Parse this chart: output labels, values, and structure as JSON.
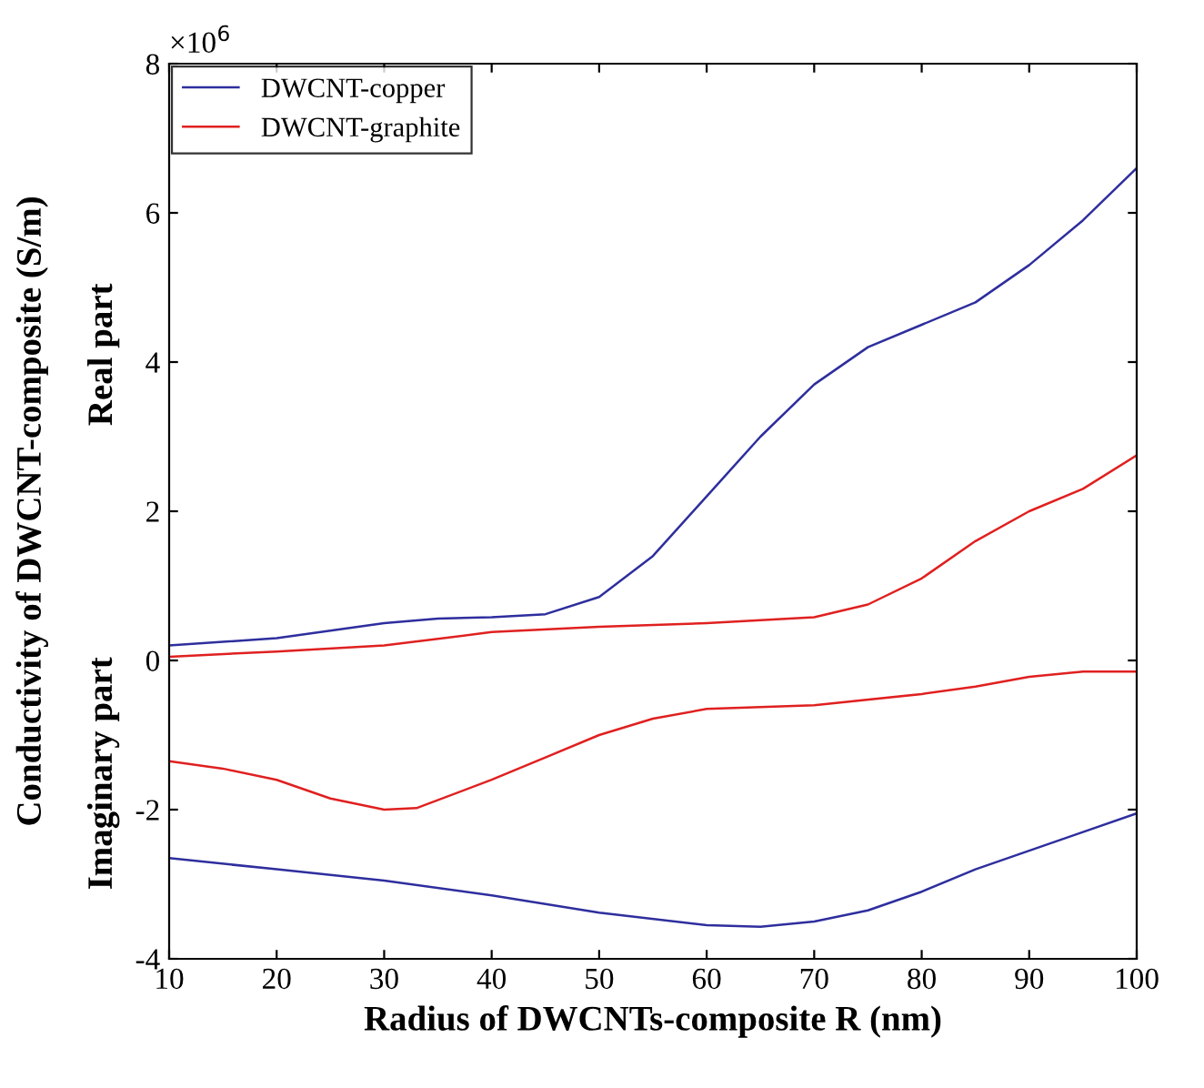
{
  "chart_data": {
    "type": "line",
    "xlabel": "Radius of DWCNTs-composite R (nm)",
    "ylabel": "Conductivity of DWCNT-composite (S/m)",
    "annotations": [
      "×10$^{6}$",
      "Real part",
      "Imaginary part"
    ],
    "series": [
      {
        "name": "DWCNT-copper",
        "color": "#2e2e9e",
        "x": [
          10,
          20,
          30,
          35,
          40,
          45,
          50,
          55,
          60,
          65,
          70,
          75,
          80,
          85,
          90,
          95,
          100
        ],
        "values": [
          0.2,
          0.3,
          0.5,
          0.56,
          0.58,
          0.62,
          0.85,
          1.4,
          2.2,
          3.0,
          3.7,
          4.2,
          4.5,
          4.8,
          5.3,
          5.9,
          6.6
        ]
      },
      {
        "name": "DWCNT-graphite",
        "color": "#e02020",
        "x": [
          10,
          20,
          30,
          40,
          50,
          60,
          70,
          75,
          80,
          85,
          90,
          95,
          100
        ],
        "values": [
          0.05,
          0.12,
          0.2,
          0.38,
          0.45,
          0.5,
          0.58,
          0.75,
          1.1,
          1.6,
          2.0,
          2.3,
          2.75
        ]
      },
      {
        "color": "#e02020",
        "x": [
          10,
          15,
          20,
          25,
          30,
          33,
          40,
          45,
          50,
          55,
          60,
          70,
          80,
          85,
          90,
          95,
          100
        ],
        "values": [
          -1.35,
          -1.45,
          -1.6,
          -1.85,
          -2.0,
          -1.98,
          -1.6,
          -1.3,
          -1.0,
          -0.78,
          -0.65,
          -0.6,
          -0.45,
          -0.35,
          -0.22,
          -0.15,
          -0.15
        ]
      },
      {
        "color": "#2e2e9e",
        "x": [
          10,
          20,
          30,
          40,
          50,
          60,
          65,
          70,
          75,
          80,
          85,
          90,
          95,
          100
        ],
        "values": [
          -2.65,
          -2.8,
          -2.95,
          -3.15,
          -3.38,
          -3.55,
          -3.57,
          -3.5,
          -3.35,
          -3.1,
          -2.8,
          -2.55,
          -2.3,
          -2.05
        ]
      }
    ],
    "xlim": [
      10,
      100
    ],
    "xticks": [
      10,
      20,
      30,
      40,
      50,
      60,
      70,
      80,
      90,
      100
    ],
    "ylim": [
      -4,
      8
    ],
    "yticks": [
      -4,
      -2,
      0,
      2,
      4,
      6,
      8
    ],
    "grid": false,
    "legend": "top left",
    "marker": "none",
    "line_style": "solid"
  }
}
